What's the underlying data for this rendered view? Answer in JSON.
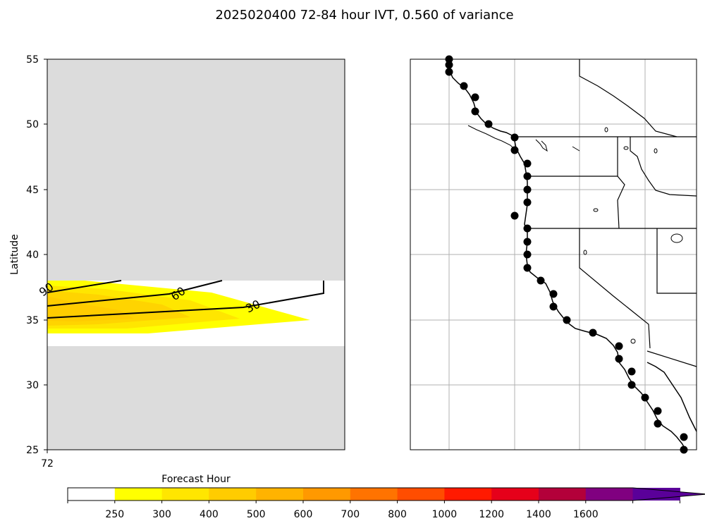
{
  "figure": {
    "title": "2025020400 72-84 hour IVT, 0.560 of variance"
  },
  "chart_data": [
    {
      "type": "heatmap",
      "panel": "forecast-hour-vs-latitude",
      "ylabel": "Latitude",
      "xlabel": "Forecast Hour",
      "xticks": [
        "72"
      ],
      "yticks": [
        25,
        30,
        35,
        40,
        45,
        50,
        55
      ],
      "ylim": [
        25,
        55
      ],
      "missing_color": "#dcdcdc",
      "contours": [
        {
          "value": 30,
          "label": "30"
        },
        {
          "value": 60,
          "label": "60"
        },
        {
          "value": 90,
          "label": "90"
        }
      ]
    },
    {
      "type": "map",
      "panel": "us-west-coast-map",
      "grid": true,
      "points_count": 32
    }
  ],
  "colorbar": {
    "tick_labels": [
      "250",
      "300",
      "400",
      "500",
      "600",
      "700",
      "800",
      "1000",
      "1200",
      "1400",
      "1600"
    ],
    "colors": [
      "#ffffff",
      "#ffff00",
      "#ffe600",
      "#ffcc00",
      "#ffb300",
      "#ff9900",
      "#ff7300",
      "#ff4d00",
      "#ff1a00",
      "#e6001a",
      "#b3003a",
      "#800080",
      "#5a0099"
    ],
    "extend": "max"
  }
}
